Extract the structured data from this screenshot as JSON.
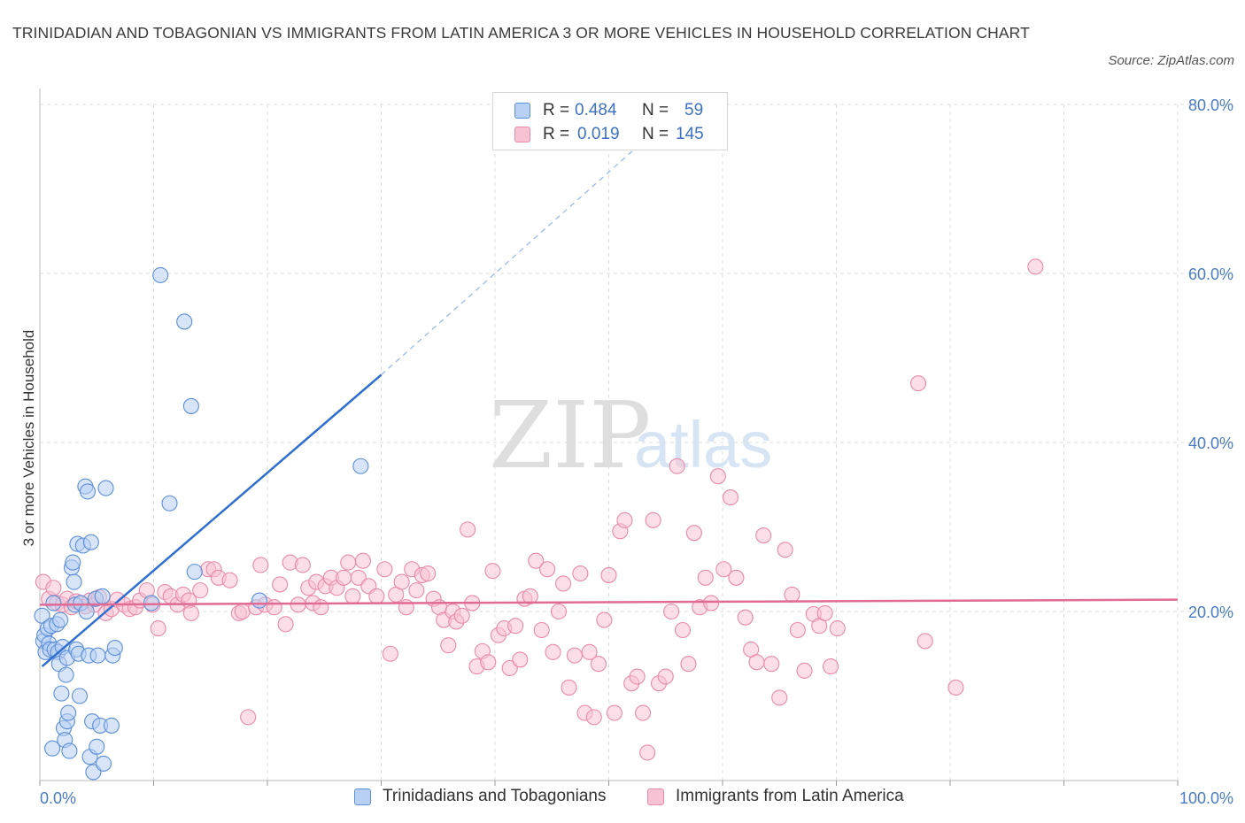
{
  "title": "TRINIDADIAN AND TOBAGONIAN VS IMMIGRANTS FROM LATIN AMERICA 3 OR MORE VEHICLES IN HOUSEHOLD CORRELATION CHART",
  "source": "Source: ZipAtlas.com",
  "watermark": {
    "zip": "ZIP",
    "atlas": "atlas"
  },
  "colors": {
    "blue_fill": "#b8d0f3",
    "blue_stroke": "#5b8fd8",
    "blue_line": "#2e6fd0",
    "pink_fill": "#f7c3d4",
    "pink_stroke": "#e98aa9",
    "pink_line": "#e06b95",
    "grid": "#dddddd",
    "tick_text": "#4a7cc2"
  },
  "legend": {
    "rows": [
      {
        "r_label": "R =",
        "r_value": "0.484",
        "n_label": "N =",
        "n_value": "59",
        "color": "#b8d0f3",
        "stroke": "#5b8fd8"
      },
      {
        "r_label": "R =",
        "r_value": "0.019",
        "n_label": "N =",
        "n_value": "145",
        "color": "#f7c3d4",
        "stroke": "#e98aa9"
      }
    ]
  },
  "chart_data": {
    "type": "scatter",
    "title": "TRINIDADIAN AND TOBAGONIAN VS IMMIGRANTS FROM LATIN AMERICA 3 OR MORE VEHICLES IN HOUSEHOLD CORRELATION CHART",
    "xlabel": "",
    "ylabel": "3 or more Vehicles in Household",
    "xlim": [
      0,
      100
    ],
    "ylim": [
      0,
      80
    ],
    "x_tick_labels": [
      "0.0%",
      "100.0%"
    ],
    "y_ticks": [
      20,
      40,
      60,
      80
    ],
    "y_tick_labels": [
      "20.0%",
      "40.0%",
      "60.0%",
      "80.0%"
    ],
    "grid": true,
    "legend_position": "bottom",
    "series": [
      {
        "name": "Trinidadians and Tobagonians",
        "color": "#b8d0f3",
        "points": [
          [
            0.2,
            19.5
          ],
          [
            0.3,
            16.5
          ],
          [
            0.4,
            17.2
          ],
          [
            0.5,
            15.2
          ],
          [
            0.7,
            18.0
          ],
          [
            0.8,
            16.2
          ],
          [
            0.9,
            15.5
          ],
          [
            1.0,
            18.3
          ],
          [
            1.1,
            3.8
          ],
          [
            1.2,
            21.0
          ],
          [
            1.3,
            15.5
          ],
          [
            1.5,
            18.5
          ],
          [
            1.6,
            15.2
          ],
          [
            1.7,
            13.8
          ],
          [
            1.8,
            19.0
          ],
          [
            1.9,
            10.3
          ],
          [
            2.0,
            15.8
          ],
          [
            2.1,
            6.2
          ],
          [
            2.2,
            4.8
          ],
          [
            2.3,
            12.5
          ],
          [
            2.4,
            14.5
          ],
          [
            2.4,
            7.0
          ],
          [
            2.5,
            8.0
          ],
          [
            2.6,
            3.5
          ],
          [
            2.8,
            25.2
          ],
          [
            2.9,
            25.8
          ],
          [
            3.0,
            23.5
          ],
          [
            3.1,
            20.8
          ],
          [
            3.2,
            15.5
          ],
          [
            3.3,
            28.0
          ],
          [
            3.4,
            15.0
          ],
          [
            3.5,
            10.0
          ],
          [
            3.6,
            21.0
          ],
          [
            3.8,
            27.8
          ],
          [
            4.0,
            34.8
          ],
          [
            4.1,
            20.0
          ],
          [
            4.2,
            34.2
          ],
          [
            4.3,
            14.8
          ],
          [
            4.4,
            2.8
          ],
          [
            4.5,
            28.2
          ],
          [
            4.6,
            7.0
          ],
          [
            4.7,
            1.0
          ],
          [
            4.9,
            21.5
          ],
          [
            5.0,
            4.0
          ],
          [
            5.1,
            14.8
          ],
          [
            5.3,
            6.5
          ],
          [
            5.5,
            21.8
          ],
          [
            5.6,
            2.0
          ],
          [
            5.8,
            34.6
          ],
          [
            6.3,
            6.5
          ],
          [
            6.4,
            14.8
          ],
          [
            6.6,
            15.7
          ],
          [
            9.8,
            21.0
          ],
          [
            10.6,
            59.8
          ],
          [
            11.4,
            32.8
          ],
          [
            12.7,
            54.3
          ],
          [
            13.3,
            44.3
          ],
          [
            13.6,
            24.7
          ],
          [
            19.3,
            21.3
          ],
          [
            28.2,
            37.2
          ]
        ],
        "trend": {
          "x1": 0.2,
          "y1": 13.5,
          "x2": 30.0,
          "y2": 48.0,
          "dash_to_x": 55.0,
          "dash_to_y": 78.0
        }
      },
      {
        "name": "Immigrants from Latin America",
        "color": "#f7c3d4",
        "points": [
          [
            0.3,
            23.5
          ],
          [
            0.8,
            21.5
          ],
          [
            1.2,
            22.8
          ],
          [
            1.5,
            21.0
          ],
          [
            2.0,
            20.8
          ],
          [
            2.4,
            21.5
          ],
          [
            2.8,
            20.5
          ],
          [
            3.2,
            21.2
          ],
          [
            3.6,
            21.0
          ],
          [
            4.0,
            20.6
          ],
          [
            4.4,
            21.3
          ],
          [
            4.8,
            20.8
          ],
          [
            5.2,
            21.7
          ],
          [
            5.8,
            19.8
          ],
          [
            6.3,
            20.3
          ],
          [
            6.8,
            21.4
          ],
          [
            7.4,
            20.8
          ],
          [
            7.9,
            20.3
          ],
          [
            8.4,
            20.5
          ],
          [
            8.8,
            21.3
          ],
          [
            9.4,
            22.5
          ],
          [
            9.9,
            20.8
          ],
          [
            10.4,
            18.0
          ],
          [
            11.0,
            22.3
          ],
          [
            11.5,
            21.8
          ],
          [
            12.1,
            20.8
          ],
          [
            12.6,
            22.0
          ],
          [
            13.1,
            21.3
          ],
          [
            13.3,
            19.8
          ],
          [
            14.1,
            22.5
          ],
          [
            14.8,
            25.0
          ],
          [
            15.3,
            25.0
          ],
          [
            15.7,
            24.0
          ],
          [
            16.7,
            23.7
          ],
          [
            17.5,
            19.8
          ],
          [
            17.8,
            20.0
          ],
          [
            18.3,
            7.5
          ],
          [
            19.0,
            20.5
          ],
          [
            19.4,
            25.5
          ],
          [
            19.8,
            20.8
          ],
          [
            20.6,
            20.5
          ],
          [
            21.1,
            23.2
          ],
          [
            21.6,
            18.5
          ],
          [
            22.0,
            25.8
          ],
          [
            22.7,
            20.8
          ],
          [
            23.1,
            25.5
          ],
          [
            23.6,
            22.8
          ],
          [
            24.0,
            21.0
          ],
          [
            24.3,
            23.5
          ],
          [
            24.7,
            20.5
          ],
          [
            25.1,
            23.0
          ],
          [
            25.6,
            24.0
          ],
          [
            26.1,
            22.8
          ],
          [
            26.7,
            24.0
          ],
          [
            27.1,
            25.8
          ],
          [
            27.5,
            21.8
          ],
          [
            28.0,
            24.0
          ],
          [
            28.4,
            26.0
          ],
          [
            28.9,
            23.0
          ],
          [
            29.6,
            21.8
          ],
          [
            30.3,
            25.0
          ],
          [
            30.8,
            15.0
          ],
          [
            31.3,
            22.0
          ],
          [
            31.8,
            23.5
          ],
          [
            32.2,
            20.5
          ],
          [
            32.7,
            25.0
          ],
          [
            33.1,
            22.5
          ],
          [
            33.6,
            24.3
          ],
          [
            34.1,
            24.5
          ],
          [
            34.6,
            21.5
          ],
          [
            35.1,
            20.5
          ],
          [
            35.5,
            19.0
          ],
          [
            35.9,
            16.0
          ],
          [
            36.3,
            20.0
          ],
          [
            36.6,
            18.8
          ],
          [
            37.1,
            19.5
          ],
          [
            37.6,
            29.7
          ],
          [
            38.0,
            21.0
          ],
          [
            38.4,
            13.5
          ],
          [
            38.9,
            15.3
          ],
          [
            39.4,
            14.0
          ],
          [
            39.8,
            24.8
          ],
          [
            40.3,
            17.2
          ],
          [
            40.8,
            18.0
          ],
          [
            41.3,
            13.3
          ],
          [
            41.8,
            18.3
          ],
          [
            42.2,
            14.3
          ],
          [
            42.6,
            21.5
          ],
          [
            43.1,
            21.8
          ],
          [
            43.6,
            26.0
          ],
          [
            44.1,
            17.8
          ],
          [
            44.6,
            25.0
          ],
          [
            45.1,
            15.2
          ],
          [
            45.6,
            20.0
          ],
          [
            46.0,
            23.3
          ],
          [
            46.5,
            11.0
          ],
          [
            47.0,
            14.8
          ],
          [
            47.5,
            24.5
          ],
          [
            47.9,
            8.0
          ],
          [
            48.3,
            15.2
          ],
          [
            48.7,
            7.5
          ],
          [
            49.1,
            13.8
          ],
          [
            49.6,
            19.0
          ],
          [
            50.0,
            24.3
          ],
          [
            50.5,
            8.0
          ],
          [
            51.0,
            29.5
          ],
          [
            51.4,
            30.8
          ],
          [
            52.0,
            11.5
          ],
          [
            52.5,
            12.3
          ],
          [
            53.0,
            8.0
          ],
          [
            53.4,
            3.3
          ],
          [
            53.9,
            30.8
          ],
          [
            54.4,
            11.5
          ],
          [
            55.0,
            12.3
          ],
          [
            55.5,
            20.0
          ],
          [
            56.0,
            37.2
          ],
          [
            56.5,
            17.8
          ],
          [
            57.0,
            13.8
          ],
          [
            57.5,
            29.3
          ],
          [
            58.0,
            20.5
          ],
          [
            58.5,
            24.0
          ],
          [
            59.0,
            21.0
          ],
          [
            59.6,
            36.0
          ],
          [
            60.1,
            25.0
          ],
          [
            60.7,
            33.5
          ],
          [
            61.2,
            24.0
          ],
          [
            62.0,
            19.3
          ],
          [
            62.5,
            15.5
          ],
          [
            63.0,
            14.0
          ],
          [
            63.6,
            29.0
          ],
          [
            64.3,
            13.8
          ],
          [
            65.0,
            9.8
          ],
          [
            65.5,
            27.3
          ],
          [
            66.1,
            22.0
          ],
          [
            66.6,
            17.8
          ],
          [
            67.2,
            13.0
          ],
          [
            68.0,
            19.7
          ],
          [
            68.5,
            18.3
          ],
          [
            69.0,
            19.8
          ],
          [
            69.5,
            13.5
          ],
          [
            70.1,
            18.0
          ],
          [
            77.2,
            47.0
          ],
          [
            77.8,
            16.5
          ],
          [
            80.5,
            11.0
          ],
          [
            87.5,
            60.8
          ]
        ],
        "trend": {
          "x1": 0.0,
          "y1": 20.8,
          "x2": 100.0,
          "y2": 21.4
        }
      }
    ]
  }
}
